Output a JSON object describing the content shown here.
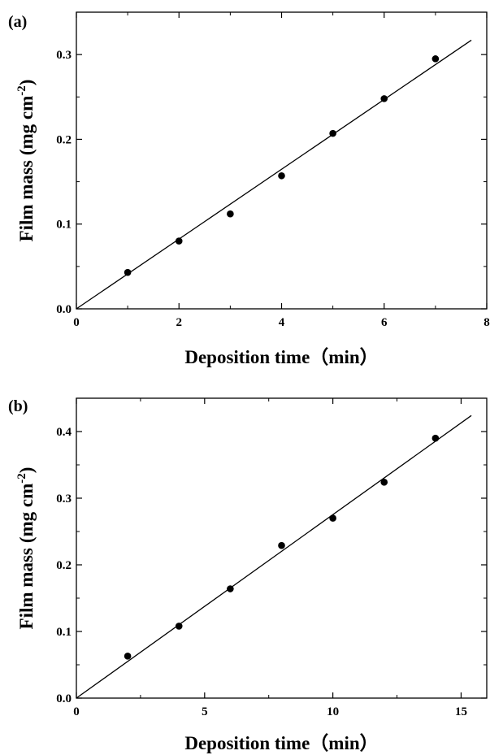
{
  "chart_data": [
    {
      "type": "scatter",
      "panel_label": "(a)",
      "xlabel": "Deposition time（min）",
      "ylabel_main": "Film mass",
      "ylabel_unit": "(mg cm",
      "ylabel_exp": "-2",
      "ylabel_close": ")",
      "xlim": [
        0,
        8
      ],
      "ylim": [
        0,
        0.35
      ],
      "xticks": [
        0,
        2,
        4,
        6,
        8
      ],
      "xtick_labels": [
        "0",
        "2",
        "4",
        "6",
        "8"
      ],
      "yticks": [
        0.0,
        0.1,
        0.2,
        0.3
      ],
      "ytick_labels": [
        "0.0",
        "0.1",
        "0.2",
        "0.3"
      ],
      "x": [
        1,
        2,
        3,
        4,
        5,
        6,
        7
      ],
      "y": [
        0.043,
        0.08,
        0.112,
        0.157,
        0.207,
        0.248,
        0.295
      ],
      "fit_line": {
        "x": [
          0,
          7.7
        ],
        "y": [
          0,
          0.317
        ]
      },
      "grid": false,
      "color": "#000000"
    },
    {
      "type": "scatter",
      "panel_label": "(b)",
      "xlabel": "Deposition time（min）",
      "ylabel_main": "Film mass",
      "ylabel_unit": "(mg cm",
      "ylabel_exp": "-2",
      "ylabel_close": ")",
      "xlim": [
        0,
        16
      ],
      "ylim": [
        0,
        0.45
      ],
      "xticks": [
        0,
        5,
        10,
        15
      ],
      "xtick_labels": [
        "0",
        "5",
        "10",
        "15"
      ],
      "yticks": [
        0.0,
        0.1,
        0.2,
        0.3,
        0.4
      ],
      "ytick_labels": [
        "0.0",
        "0.1",
        "0.2",
        "0.3",
        "0.4"
      ],
      "x": [
        2,
        4,
        6,
        8,
        10,
        12,
        14
      ],
      "y": [
        0.063,
        0.108,
        0.164,
        0.229,
        0.27,
        0.324,
        0.39
      ],
      "fit_line": {
        "x": [
          0,
          15.4
        ],
        "y": [
          0,
          0.424
        ]
      },
      "grid": false,
      "color": "#000000"
    }
  ]
}
